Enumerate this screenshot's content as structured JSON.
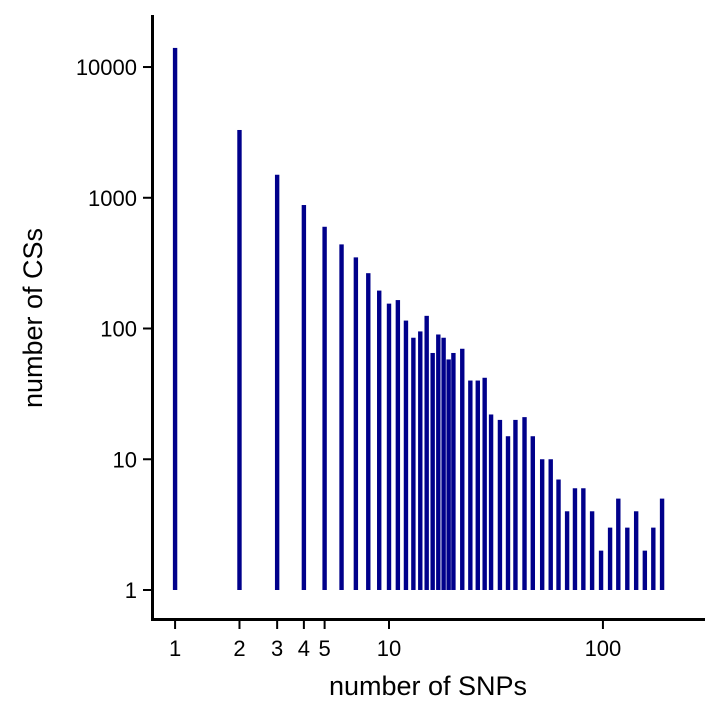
{
  "chart_data": {
    "type": "bar",
    "title": "",
    "xlabel": "number of SNPs",
    "ylabel": "number of CSs",
    "x_scale": "log",
    "y_scale": "log",
    "xlim": [
      0.78,
      300
    ],
    "ylim": [
      0.6,
      25000
    ],
    "grid": false,
    "legend": "none",
    "bar_color": "#00008B",
    "x_ticks": [
      {
        "value": 1,
        "label": "1"
      },
      {
        "value": 2,
        "label": "2"
      },
      {
        "value": 3,
        "label": "3"
      },
      {
        "value": 4,
        "label": "4"
      },
      {
        "value": 5,
        "label": "5"
      },
      {
        "value": 10,
        "label": "10"
      },
      {
        "value": 100,
        "label": "100"
      }
    ],
    "y_ticks": [
      {
        "value": 1,
        "label": "1"
      },
      {
        "value": 10,
        "label": "10"
      },
      {
        "value": 100,
        "label": "100"
      },
      {
        "value": 1000,
        "label": "1000"
      },
      {
        "value": 10000,
        "label": "10000"
      }
    ],
    "x": [
      1,
      2,
      3,
      4,
      5,
      6,
      7,
      8,
      9,
      10,
      11,
      12,
      13,
      14,
      15,
      16,
      17,
      18,
      19,
      20,
      22,
      24,
      26,
      28,
      30,
      33,
      36,
      39,
      43,
      47,
      52,
      57,
      62,
      68,
      74,
      81,
      89,
      98,
      108,
      118,
      130,
      143,
      157,
      172,
      189
    ],
    "values": [
      14000,
      3300,
      1500,
      880,
      600,
      440,
      350,
      265,
      195,
      155,
      165,
      115,
      85,
      95,
      125,
      65,
      90,
      85,
      58,
      65,
      70,
      40,
      40,
      42,
      22,
      20,
      15,
      20,
      21,
      15,
      10,
      10,
      7,
      4,
      6,
      6,
      4,
      2,
      3,
      5,
      3,
      4,
      2,
      3,
      5
    ]
  }
}
